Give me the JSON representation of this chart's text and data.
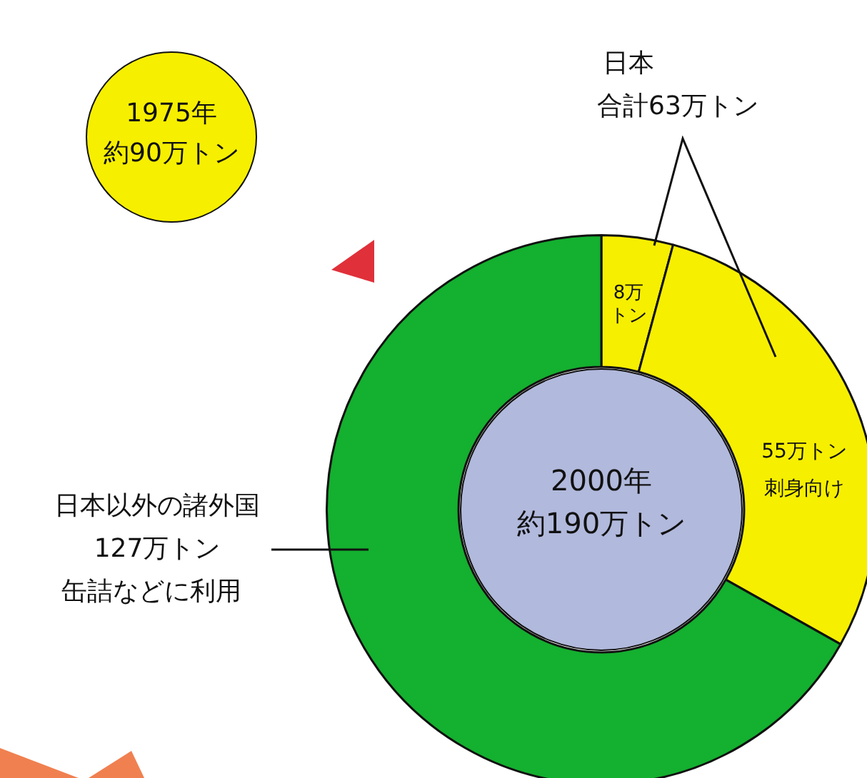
{
  "chart_data": {
    "type": "donut",
    "categories": [
      null,
      "刺身向け",
      "日本以外の諸外国"
    ],
    "values": [
      8,
      55,
      127
    ],
    "colors": [
      "#f7ef00",
      "#f7ef00",
      "#14b02f"
    ],
    "value_labels": [
      "8万トン",
      "55万トン",
      "127万トン"
    ],
    "annotations": [
      "日本",
      "合計63万トン",
      "缶詰などに利用",
      "2000年",
      "約190万トン",
      "1975年",
      "約90万トン"
    ]
  }
}
